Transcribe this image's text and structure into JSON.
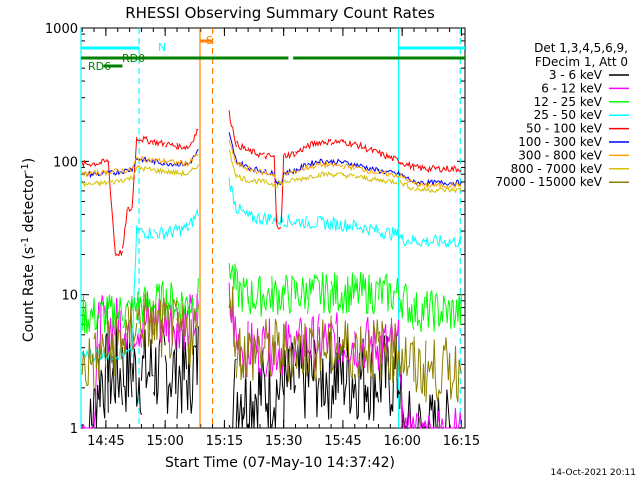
{
  "chart_data": {
    "type": "line",
    "title": "RHESSI Observing Summary Count Rates",
    "xlabel": "Start Time (07-May-10 14:37:42)",
    "ylabel_main": "Count Rate (s",
    "ylabel_sup1": "-1",
    "ylabel_mid": " detector",
    "ylabel_sup2": "-1",
    "ylabel_end": ")",
    "yscale": "log",
    "ylim": [
      1,
      1000
    ],
    "xlim_minutes": [
      14.645,
      16.265
    ],
    "x_ticks": [
      {
        "label": "14:45",
        "value": 14.75
      },
      {
        "label": "15:00",
        "value": 15.0
      },
      {
        "label": "15:15",
        "value": 15.25
      },
      {
        "label": "15:30",
        "value": 15.5
      },
      {
        "label": "15:45",
        "value": 15.75
      },
      {
        "label": "16:00",
        "value": 16.0
      },
      {
        "label": "16:15",
        "value": 16.25
      }
    ],
    "y_ticks": [
      {
        "label": "1",
        "value": 1
      },
      {
        "label": "10",
        "value": 10
      },
      {
        "label": "100",
        "value": 100
      },
      {
        "label": "1000",
        "value": 1000
      }
    ],
    "legend_header": [
      "Det 1,3,4,5,6,9,",
      "FDecim 1, Att 0"
    ],
    "footer_date": "14-Oct-2021 20:11",
    "annotations": {
      "N": "N",
      "S": "S",
      "RD0": "RD0",
      "RD6": "RD6"
    },
    "series": [
      {
        "name": "3 - 6 keV",
        "color": "#000000",
        "points": [
          [
            14.65,
            0.9
          ],
          [
            14.69,
            0.9
          ],
          [
            14.72,
            2.5
          ],
          [
            14.76,
            2.4
          ],
          [
            14.78,
            2.6
          ],
          [
            14.82,
            2.6
          ],
          [
            14.86,
            2.6
          ],
          [
            14.9,
            2.6
          ],
          [
            14.95,
            2.7
          ],
          [
            15.0,
            2.8
          ],
          [
            15.05,
            2.6
          ],
          [
            15.09,
            2.4
          ],
          [
            15.1,
            2.6
          ],
          [
            15.13,
            3.1
          ],
          [
            15.14,
            3.4
          ],
          [
            15.147,
            null
          ],
          [
            15.266,
            null
          ],
          [
            15.27,
            1.8
          ],
          [
            15.3,
            1.9
          ],
          [
            15.33,
            1.8
          ],
          [
            15.4,
            1.9
          ],
          [
            15.5,
            2.0
          ],
          [
            15.55,
            2.1
          ],
          [
            15.6,
            2.4
          ],
          [
            15.65,
            2.5
          ],
          [
            15.7,
            2.5
          ],
          [
            15.8,
            2.5
          ],
          [
            15.9,
            2.4
          ],
          [
            15.99,
            2.4
          ],
          [
            16.0,
            0.9
          ],
          [
            16.25,
            0.9
          ]
        ]
      },
      {
        "name": "6 - 12 keV",
        "color": "#ff00ff",
        "points": [
          [
            14.65,
            0.9
          ],
          [
            14.7,
            0.9
          ],
          [
            14.72,
            6.0
          ],
          [
            14.8,
            6.0
          ],
          [
            14.86,
            6.2
          ],
          [
            14.9,
            6.0
          ],
          [
            14.95,
            6.4
          ],
          [
            15.0,
            6.6
          ],
          [
            15.05,
            6.4
          ],
          [
            15.1,
            6.2
          ],
          [
            15.14,
            6.8
          ],
          [
            15.147,
            null
          ],
          [
            15.266,
            null
          ],
          [
            15.27,
            8.5
          ],
          [
            15.3,
            4.6
          ],
          [
            15.35,
            3.9
          ],
          [
            15.42,
            4.0
          ],
          [
            15.5,
            4.0
          ],
          [
            15.58,
            4.2
          ],
          [
            15.65,
            4.4
          ],
          [
            15.72,
            4.5
          ],
          [
            15.8,
            4.4
          ],
          [
            15.9,
            4.2
          ],
          [
            15.99,
            4.0
          ],
          [
            16.0,
            0.9
          ],
          [
            16.25,
            0.9
          ]
        ]
      },
      {
        "name": "12 - 25 keV",
        "color": "#00ff00",
        "points": [
          [
            14.65,
            7.0
          ],
          [
            14.75,
            7.0
          ],
          [
            14.82,
            7.4
          ],
          [
            14.86,
            7.3
          ],
          [
            14.88,
            8.2
          ],
          [
            14.95,
            8.6
          ],
          [
            15.0,
            9.0
          ],
          [
            15.05,
            8.8
          ],
          [
            15.1,
            8.4
          ],
          [
            15.14,
            9.5
          ],
          [
            15.147,
            null
          ],
          [
            15.266,
            null
          ],
          [
            15.27,
            18.0
          ],
          [
            15.3,
            11.0
          ],
          [
            15.35,
            9.6
          ],
          [
            15.45,
            10.0
          ],
          [
            15.5,
            10.0
          ],
          [
            15.6,
            10.2
          ],
          [
            15.7,
            10.4
          ],
          [
            15.8,
            10.3
          ],
          [
            15.9,
            10.2
          ],
          [
            15.99,
            10.0
          ],
          [
            16.05,
            7.5
          ],
          [
            16.1,
            7.6
          ],
          [
            16.2,
            7.4
          ],
          [
            16.25,
            7.4
          ]
        ]
      },
      {
        "name": "25 - 50 keV",
        "color": "#00ffff",
        "points": [
          [
            14.65,
            3.5
          ],
          [
            14.72,
            3.6
          ],
          [
            14.8,
            3.6
          ],
          [
            14.86,
            3.6
          ],
          [
            14.88,
            30.0
          ],
          [
            14.95,
            29.0
          ],
          [
            15.0,
            29.0
          ],
          [
            15.05,
            30.0
          ],
          [
            15.1,
            32.0
          ],
          [
            15.14,
            42.0
          ],
          [
            15.147,
            null
          ],
          [
            15.266,
            null
          ],
          [
            15.27,
            72.0
          ],
          [
            15.3,
            45.0
          ],
          [
            15.35,
            38.0
          ],
          [
            15.45,
            37.0
          ],
          [
            15.5,
            36.0
          ],
          [
            15.6,
            35.0
          ],
          [
            15.7,
            34.0
          ],
          [
            15.8,
            33.0
          ],
          [
            15.9,
            30.0
          ],
          [
            15.99,
            28.0
          ],
          [
            16.0,
            26.0
          ],
          [
            16.1,
            25.0
          ],
          [
            16.25,
            25.0
          ]
        ]
      },
      {
        "name": "50 - 100 keV",
        "color": "#ff0000",
        "points": [
          [
            14.65,
            95.0
          ],
          [
            14.72,
            97.0
          ],
          [
            14.76,
            100.0
          ],
          [
            14.79,
            20.0
          ],
          [
            14.82,
            21.0
          ],
          [
            14.84,
            43.0
          ],
          [
            14.86,
            44.0
          ],
          [
            14.88,
            150.0
          ],
          [
            14.95,
            140.0
          ],
          [
            15.0,
            135.0
          ],
          [
            15.05,
            130.0
          ],
          [
            15.1,
            128.0
          ],
          [
            15.14,
            175.0
          ],
          [
            15.147,
            null
          ],
          [
            15.266,
            null
          ],
          [
            15.27,
            230.0
          ],
          [
            15.3,
            135.0
          ],
          [
            15.35,
            120.0
          ],
          [
            15.42,
            110.0
          ],
          [
            15.46,
            108.0
          ],
          [
            15.47,
            33.0
          ],
          [
            15.49,
            33.0
          ],
          [
            15.5,
            110.0
          ],
          [
            15.55,
            115.0
          ],
          [
            15.6,
            130.0
          ],
          [
            15.65,
            140.0
          ],
          [
            15.7,
            140.0
          ],
          [
            15.75,
            140.0
          ],
          [
            15.8,
            135.0
          ],
          [
            15.9,
            115.0
          ],
          [
            15.99,
            100.0
          ],
          [
            16.05,
            90.0
          ],
          [
            16.1,
            88.0
          ],
          [
            16.25,
            88.0
          ]
        ]
      },
      {
        "name": "100 - 300 keV",
        "color": "#0000ff",
        "points": [
          [
            14.65,
            80.0
          ],
          [
            14.72,
            80.0
          ],
          [
            14.78,
            82.0
          ],
          [
            14.86,
            87.0
          ],
          [
            14.88,
            105.0
          ],
          [
            14.95,
            100.0
          ],
          [
            15.0,
            97.0
          ],
          [
            15.05,
            96.0
          ],
          [
            15.1,
            95.0
          ],
          [
            15.14,
            120.0
          ],
          [
            15.147,
            null
          ],
          [
            15.266,
            null
          ],
          [
            15.27,
            160.0
          ],
          [
            15.3,
            100.0
          ],
          [
            15.35,
            90.0
          ],
          [
            15.42,
            84.0
          ],
          [
            15.46,
            82.0
          ],
          [
            15.47,
            68.0
          ],
          [
            15.49,
            68.0
          ],
          [
            15.5,
            82.0
          ],
          [
            15.55,
            85.0
          ],
          [
            15.6,
            95.0
          ],
          [
            15.65,
            100.0
          ],
          [
            15.7,
            100.0
          ],
          [
            15.75,
            98.0
          ],
          [
            15.8,
            95.0
          ],
          [
            15.9,
            85.0
          ],
          [
            15.99,
            80.0
          ],
          [
            16.05,
            70.0
          ],
          [
            16.1,
            69.0
          ],
          [
            16.25,
            69.0
          ]
        ]
      },
      {
        "name": "300 - 800 keV",
        "color": "#ffa500",
        "points": [
          [
            14.65,
            80.0
          ],
          [
            14.72,
            82.0
          ],
          [
            14.78,
            84.0
          ],
          [
            14.86,
            86.0
          ],
          [
            14.88,
            105.0
          ],
          [
            14.95,
            102.0
          ],
          [
            15.0,
            100.0
          ],
          [
            15.05,
            98.0
          ],
          [
            15.1,
            96.0
          ],
          [
            15.14,
            115.0
          ],
          [
            15.147,
            null
          ],
          [
            15.266,
            null
          ],
          [
            15.27,
            140.0
          ],
          [
            15.3,
            96.0
          ],
          [
            15.35,
            88.0
          ],
          [
            15.42,
            82.0
          ],
          [
            15.46,
            80.0
          ],
          [
            15.47,
            70.0
          ],
          [
            15.49,
            70.0
          ],
          [
            15.5,
            80.0
          ],
          [
            15.55,
            84.0
          ],
          [
            15.6,
            90.0
          ],
          [
            15.65,
            94.0
          ],
          [
            15.7,
            94.0
          ],
          [
            15.75,
            92.0
          ],
          [
            15.8,
            90.0
          ],
          [
            15.9,
            82.0
          ],
          [
            15.99,
            78.0
          ],
          [
            16.05,
            68.0
          ],
          [
            16.1,
            66.0
          ],
          [
            16.25,
            66.0
          ]
        ]
      },
      {
        "name": "800 - 7000 keV",
        "color": "#d4c000",
        "points": [
          [
            14.65,
            67.0
          ],
          [
            14.72,
            68.0
          ],
          [
            14.78,
            70.0
          ],
          [
            14.86,
            75.0
          ],
          [
            14.88,
            90.0
          ],
          [
            14.95,
            86.0
          ],
          [
            15.0,
            84.0
          ],
          [
            15.05,
            82.0
          ],
          [
            15.1,
            80.0
          ],
          [
            15.14,
            95.0
          ],
          [
            15.147,
            null
          ],
          [
            15.266,
            null
          ],
          [
            15.27,
            120.0
          ],
          [
            15.3,
            78.0
          ],
          [
            15.35,
            72.0
          ],
          [
            15.42,
            70.0
          ],
          [
            15.47,
            66.0
          ],
          [
            15.5,
            70.0
          ],
          [
            15.55,
            72.0
          ],
          [
            15.6,
            76.0
          ],
          [
            15.65,
            80.0
          ],
          [
            15.7,
            80.0
          ],
          [
            15.75,
            79.0
          ],
          [
            15.8,
            77.0
          ],
          [
            15.9,
            72.0
          ],
          [
            15.99,
            70.0
          ],
          [
            16.05,
            62.0
          ],
          [
            16.1,
            61.0
          ],
          [
            16.25,
            61.0
          ]
        ]
      },
      {
        "name": "7000 - 15000 keV",
        "color": "#8b8000",
        "points": [
          [
            14.65,
            2.9
          ],
          [
            14.7,
            3.2
          ],
          [
            14.75,
            3.6
          ],
          [
            14.8,
            4.4
          ],
          [
            14.84,
            5.0
          ],
          [
            14.88,
            6.2
          ],
          [
            14.92,
            6.4
          ],
          [
            14.95,
            6.0
          ],
          [
            15.0,
            5.4
          ],
          [
            15.05,
            5.2
          ],
          [
            15.1,
            4.8
          ],
          [
            15.14,
            5.6
          ],
          [
            15.147,
            null
          ],
          [
            15.266,
            null
          ],
          [
            15.27,
            14.0
          ],
          [
            15.3,
            4.0
          ],
          [
            15.35,
            3.6
          ],
          [
            15.42,
            3.8
          ],
          [
            15.5,
            3.8
          ],
          [
            15.6,
            3.9
          ],
          [
            15.7,
            4.0
          ],
          [
            15.8,
            4.0
          ],
          [
            15.9,
            3.9
          ],
          [
            15.99,
            3.8
          ],
          [
            16.05,
            2.8
          ],
          [
            16.1,
            2.7
          ],
          [
            16.25,
            2.7
          ]
        ]
      }
    ],
    "flag_lines": [
      {
        "name": "Night (N)",
        "color": "#00ffff",
        "ranges": [
          [
            14.645,
            14.89
          ],
          [
            15.985,
            16.265
          ]
        ]
      },
      {
        "name": "RD0",
        "color": "#008000",
        "ranges": [
          [
            14.645,
            15.52
          ],
          [
            15.54,
            16.265
          ]
        ]
      },
      {
        "name": "RD6",
        "color": "#008000",
        "ranges": [
          [
            14.74,
            14.82
          ]
        ]
      },
      {
        "name": "SAA (S)",
        "color": "#ff8000",
        "ranges": [
          [
            15.147,
            15.2
          ]
        ]
      }
    ],
    "event_lines": [
      {
        "color": "#00ffff",
        "x": 14.645,
        "style": "solid"
      },
      {
        "color": "#00ffff",
        "x": 14.89,
        "style": "dashed"
      },
      {
        "color": "#ff8000",
        "x": 15.147,
        "style": "solid"
      },
      {
        "color": "#ff8000",
        "x": 15.2,
        "style": "dashed"
      },
      {
        "color": "#00ffff",
        "x": 15.985,
        "style": "solid"
      },
      {
        "color": "#00ffff",
        "x": 16.245,
        "style": "dashed"
      }
    ]
  }
}
